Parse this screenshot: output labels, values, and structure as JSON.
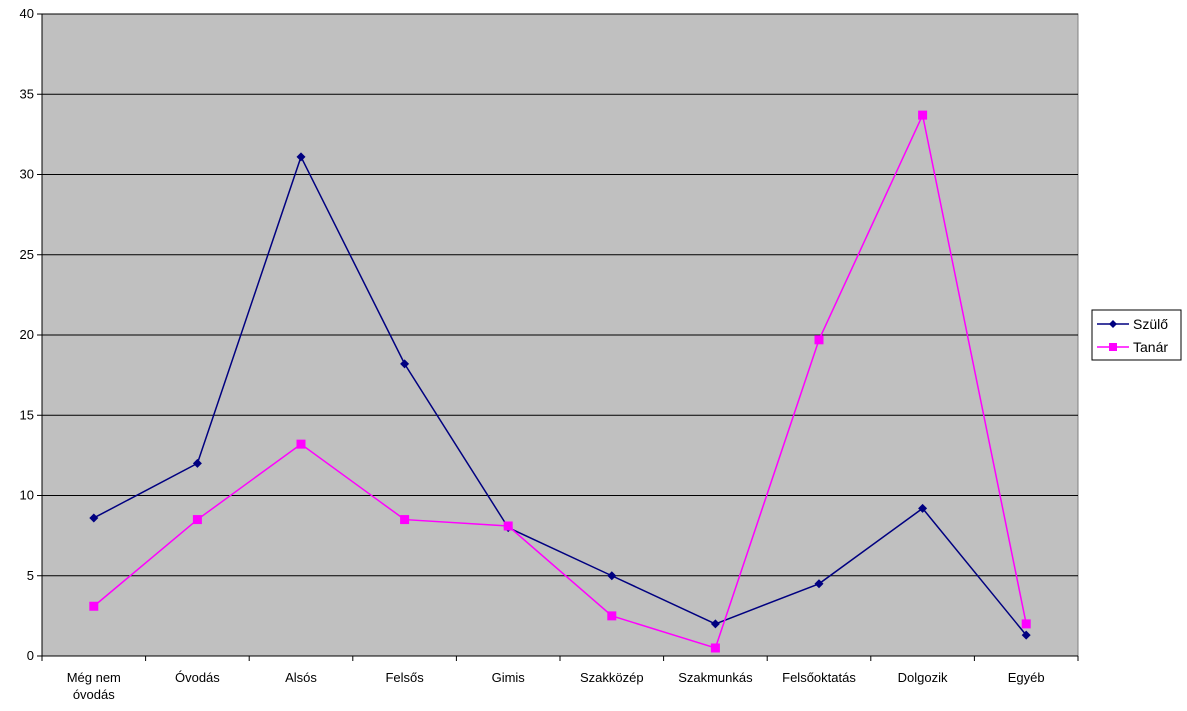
{
  "chart_data": {
    "type": "line",
    "title": "",
    "xlabel": "",
    "ylabel": "",
    "categories": [
      [
        "Még nem",
        "óvodás"
      ],
      [
        "Óvodás"
      ],
      [
        "Alsós"
      ],
      [
        "Felsős"
      ],
      [
        "Gimis"
      ],
      [
        "Szakközép"
      ],
      [
        "Szakmunkás"
      ],
      [
        "Felsőoktatás"
      ],
      [
        "Dolgozik"
      ],
      [
        "Egyéb"
      ]
    ],
    "ylim": [
      0,
      40
    ],
    "yticks": [
      0,
      5,
      10,
      15,
      20,
      25,
      30,
      35,
      40
    ],
    "grid": true,
    "legend": "right",
    "plot_background": "#c0c0c0",
    "series": [
      {
        "name": "Szülő",
        "color": "#000080",
        "marker": "diamond",
        "values": [
          8.6,
          12.0,
          31.1,
          18.2,
          8.0,
          5.0,
          2.0,
          4.5,
          9.2,
          1.3
        ]
      },
      {
        "name": "Tanár",
        "color": "#ff00ff",
        "marker": "square",
        "values": [
          3.1,
          8.5,
          13.2,
          8.5,
          8.1,
          2.5,
          0.5,
          19.7,
          33.7,
          2.0
        ]
      }
    ]
  }
}
